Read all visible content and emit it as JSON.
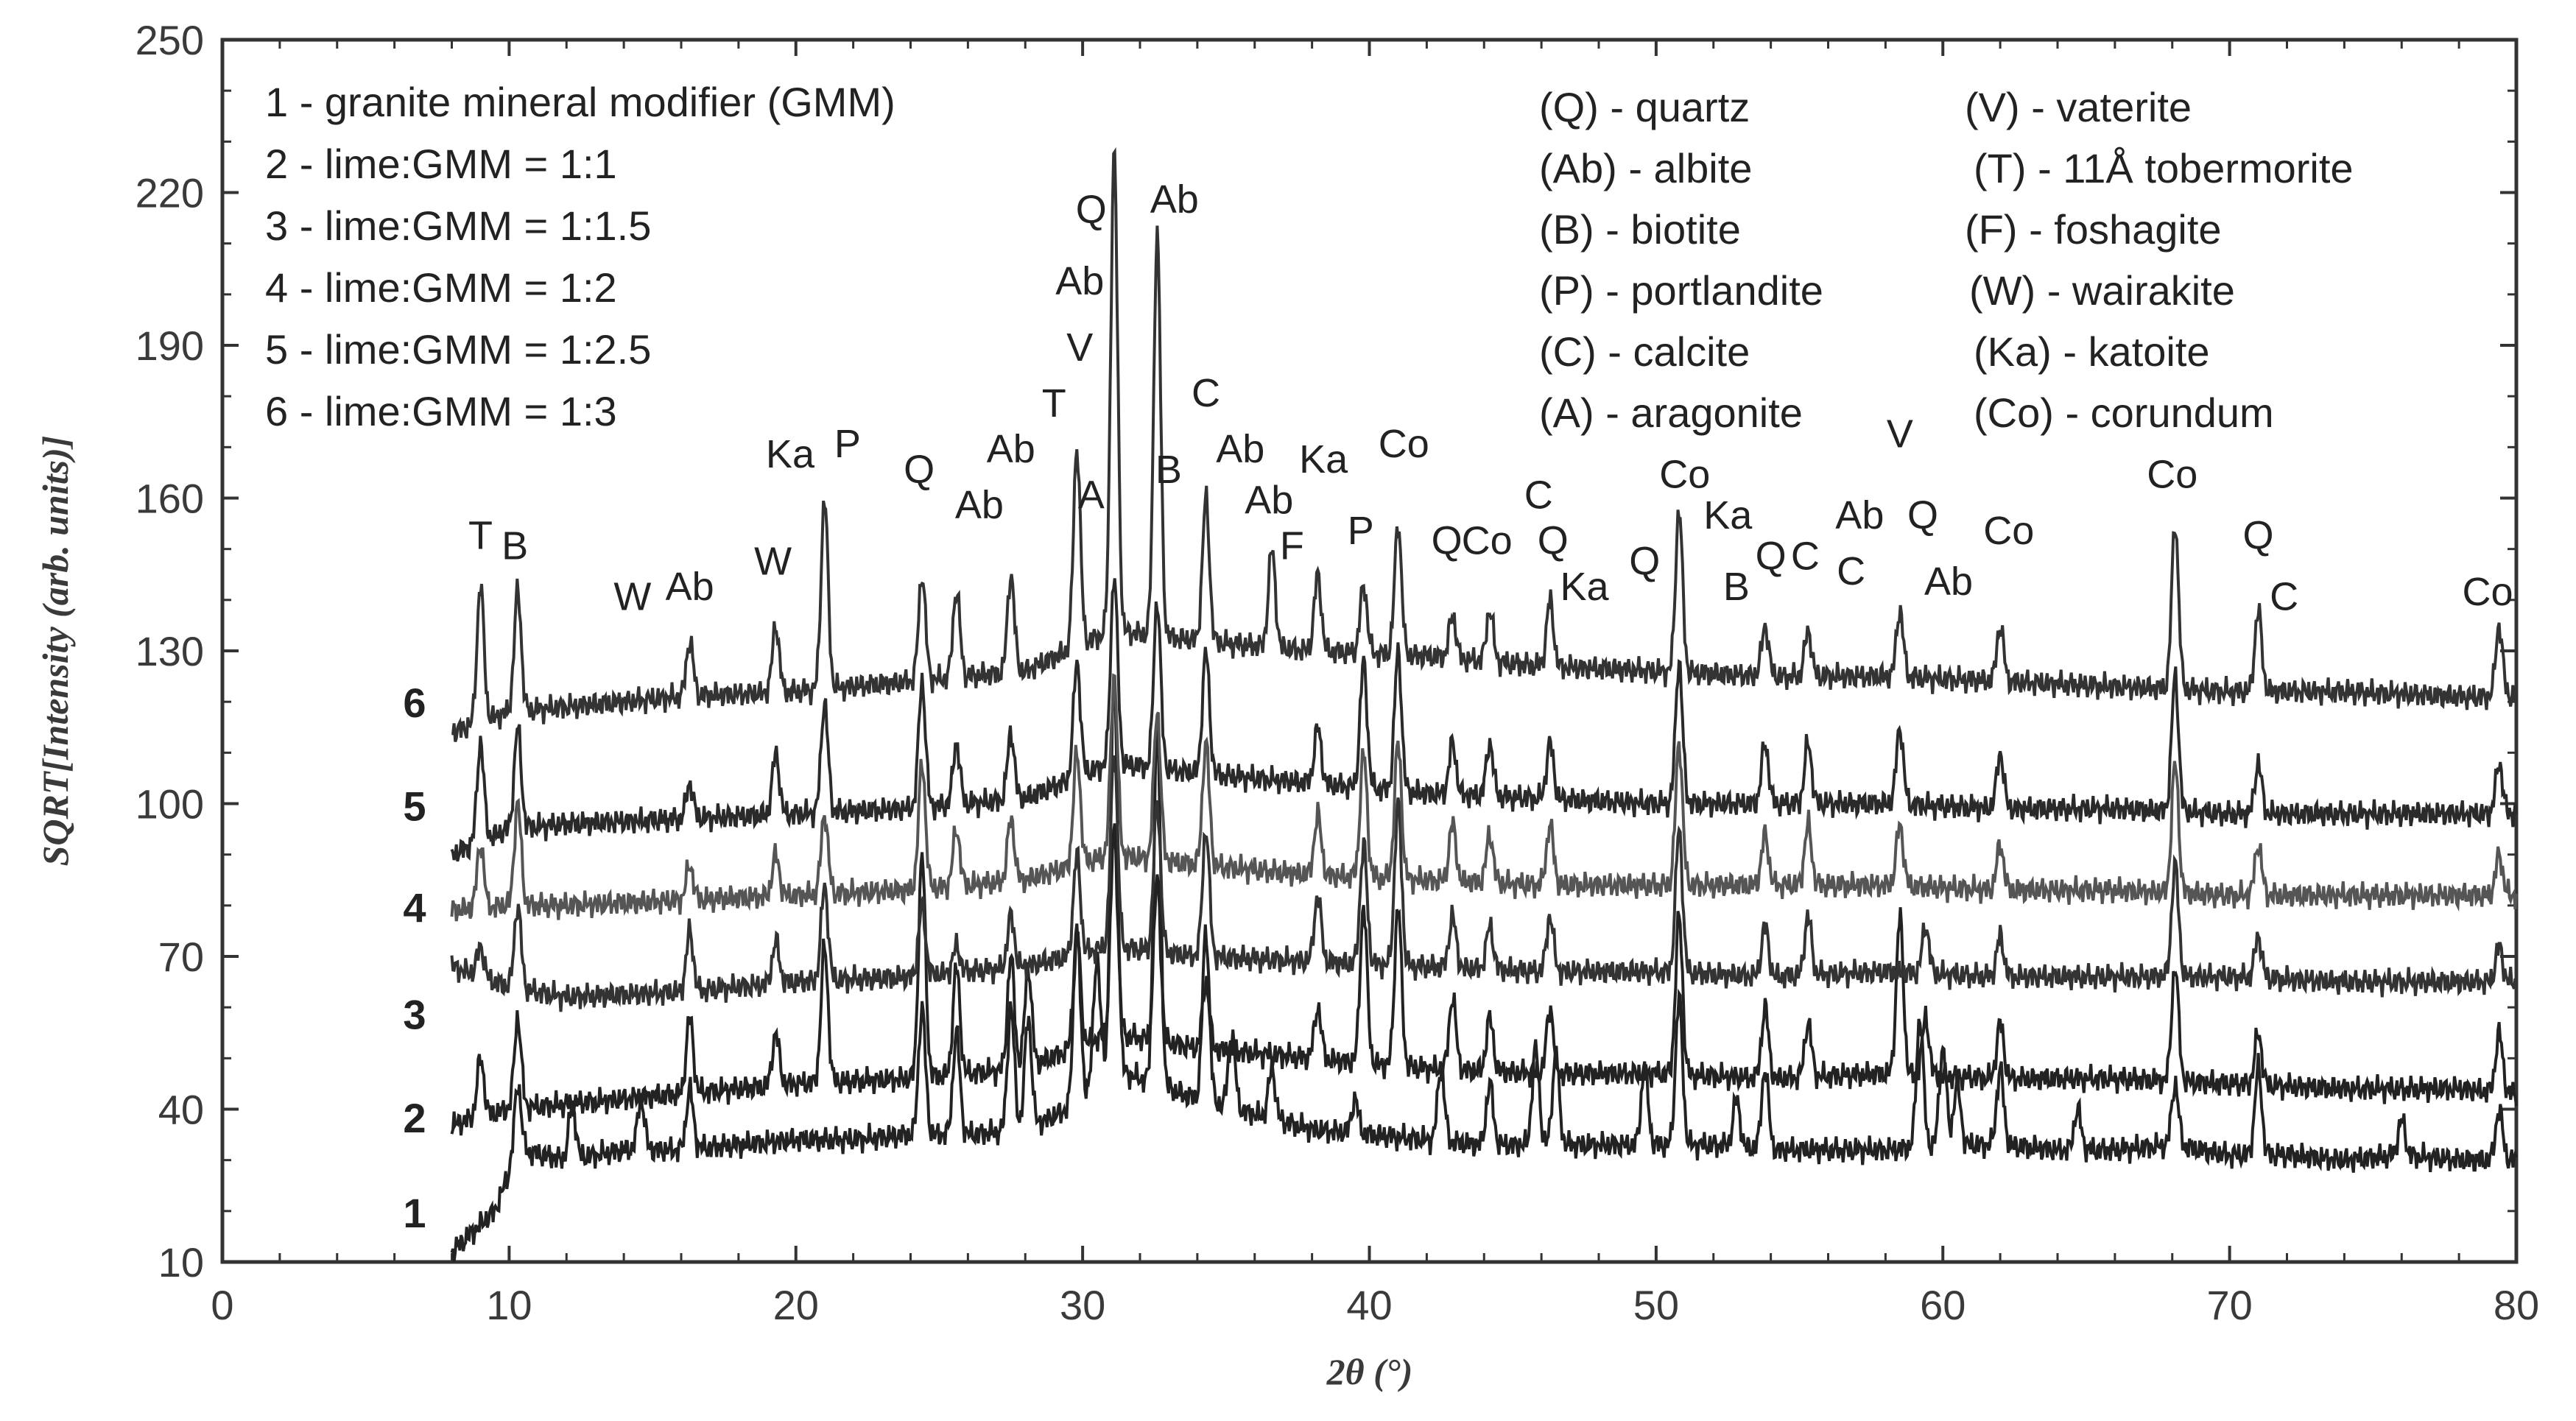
{
  "chart_data": {
    "type": "line",
    "xlabel": "2θ (°)",
    "ylabel": "SQRT[Intensity (arb. units)]",
    "xlim": [
      0,
      80
    ],
    "ylim": [
      10,
      250
    ],
    "xticks": [
      0,
      10,
      20,
      30,
      40,
      50,
      60,
      70,
      80
    ],
    "yticks": [
      10,
      40,
      70,
      100,
      130,
      160,
      190,
      220,
      250
    ],
    "legend_samples": [
      "1 - granite mineral modifier (GMM)",
      "2 - lime:GMM = 1:1",
      "3 - lime:GMM = 1:1.5",
      "4 - lime:GMM = 1:2",
      "5 - lime:GMM = 1:2.5",
      "6 - lime:GMM = 1:3"
    ],
    "legend_phases": [
      "(Q) - quartz",
      "(V) - vaterite",
      "(Ab) - albite",
      "(T) - 11Å tobermorite",
      "(B) - biotite",
      "(F) - foshagite",
      "(P) - portlandite",
      "(W) - wairakite",
      "(C) - calcite",
      "(Ka) - katoite",
      "(A) - aragonite",
      "(Co) - corundum"
    ],
    "series": [
      {
        "name": "1",
        "x": [
          8,
          9.5,
          10.3,
          12,
          14,
          16,
          18,
          20,
          22,
          24,
          26,
          28,
          29.5,
          31,
          32.5,
          34,
          36,
          38,
          40,
          42,
          44,
          46,
          48,
          50,
          52,
          54,
          56,
          58,
          60,
          62,
          64,
          66,
          68,
          70,
          72,
          74,
          76,
          78,
          80
        ],
        "y": [
          12,
          20,
          32,
          30,
          32,
          32,
          33,
          34,
          34,
          35,
          35,
          36,
          40,
          48,
          45,
          42,
          39,
          36,
          35,
          34,
          33,
          33,
          33,
          33,
          33,
          32,
          32,
          32,
          33,
          33,
          32,
          32,
          33,
          31,
          31,
          30,
          31,
          30,
          30
        ],
        "peaks": [
          [
            10.3,
            45
          ],
          [
            12.2,
            41
          ],
          [
            14.6,
            42
          ],
          [
            16.3,
            44
          ],
          [
            24.4,
            60
          ],
          [
            25.6,
            55
          ],
          [
            27.5,
            60
          ],
          [
            28.1,
            58
          ],
          [
            29.8,
            75
          ],
          [
            30.5,
            70
          ],
          [
            31.1,
            125
          ],
          [
            32.6,
            115
          ],
          [
            34.3,
            75
          ],
          [
            35.2,
            55
          ],
          [
            36.6,
            48
          ],
          [
            39.5,
            42
          ],
          [
            42.5,
            48
          ],
          [
            44.2,
            45
          ],
          [
            45.8,
            52
          ],
          [
            46.5,
            50
          ],
          [
            49.6,
            48
          ],
          [
            50.8,
            62
          ],
          [
            52.8,
            42
          ],
          [
            53.8,
            48
          ],
          [
            59.2,
            58
          ],
          [
            60.0,
            52
          ],
          [
            60.5,
            45
          ],
          [
            62.0,
            48
          ],
          [
            64.7,
            40
          ],
          [
            68.1,
            45
          ],
          [
            71.0,
            48
          ],
          [
            76.0,
            38
          ],
          [
            79.4,
            40
          ]
        ]
      },
      {
        "name": "2",
        "x": [
          8,
          10,
          12,
          16,
          20,
          24,
          28,
          31,
          34,
          38,
          42,
          46,
          50,
          54,
          58,
          62,
          66,
          70,
          74,
          78,
          80
        ],
        "y": [
          37,
          40,
          41,
          43,
          45,
          46,
          48,
          55,
          52,
          50,
          48,
          47,
          47,
          46,
          47,
          46,
          46,
          45,
          44,
          44,
          43
        ],
        "peaks": [
          [
            9.0,
            50
          ],
          [
            10.3,
            58
          ],
          [
            16.3,
            58
          ],
          [
            19.3,
            55
          ],
          [
            21.0,
            72
          ],
          [
            24.4,
            90
          ],
          [
            25.6,
            68
          ],
          [
            27.5,
            70
          ],
          [
            28.1,
            68
          ],
          [
            29.8,
            75
          ],
          [
            31.1,
            95
          ],
          [
            32.6,
            85
          ],
          [
            34.3,
            65
          ],
          [
            38.2,
            60
          ],
          [
            39.8,
            80
          ],
          [
            41.0,
            80
          ],
          [
            42.9,
            62
          ],
          [
            44.2,
            58
          ],
          [
            46.3,
            60
          ],
          [
            50.8,
            78
          ],
          [
            53.8,
            60
          ],
          [
            55.3,
            57
          ],
          [
            58.5,
            78
          ],
          [
            59.4,
            58
          ],
          [
            62.0,
            57
          ],
          [
            68.1,
            68
          ],
          [
            71.0,
            55
          ],
          [
            79.4,
            55
          ]
        ]
      },
      {
        "name": "3",
        "x": [
          8,
          10,
          12,
          16,
          20,
          24,
          28,
          31,
          34,
          38,
          42,
          46,
          50,
          54,
          58,
          62,
          66,
          70,
          74,
          78,
          80
        ],
        "y": [
          68,
          64,
          62,
          63,
          65,
          66,
          68,
          72,
          70,
          69,
          68,
          67,
          67,
          66,
          67,
          66,
          66,
          66,
          65,
          65,
          65
        ],
        "peaks": [
          [
            9.0,
            72
          ],
          [
            10.3,
            80
          ],
          [
            16.3,
            75
          ],
          [
            19.3,
            73
          ],
          [
            21.0,
            84
          ],
          [
            24.4,
            80
          ],
          [
            25.6,
            72
          ],
          [
            27.5,
            78
          ],
          [
            29.8,
            90
          ],
          [
            31.1,
            110
          ],
          [
            32.6,
            100
          ],
          [
            34.3,
            95
          ],
          [
            38.2,
            82
          ],
          [
            39.8,
            92
          ],
          [
            41.0,
            100
          ],
          [
            42.9,
            78
          ],
          [
            44.2,
            76
          ],
          [
            46.3,
            78
          ],
          [
            50.8,
            95
          ],
          [
            53.8,
            76
          ],
          [
            55.3,
            78
          ],
          [
            59.4,
            76
          ],
          [
            62.0,
            74
          ],
          [
            68.1,
            88
          ],
          [
            71.0,
            74
          ],
          [
            79.4,
            72
          ]
        ]
      },
      {
        "name": "4",
        "x": [
          8,
          10,
          12,
          16,
          20,
          24,
          28,
          31,
          34,
          38,
          42,
          46,
          50,
          54,
          58,
          62,
          66,
          70,
          74,
          78,
          80
        ],
        "y": [
          79,
          80,
          80,
          81,
          82,
          83,
          85,
          90,
          88,
          86,
          85,
          84,
          84,
          84,
          84,
          83,
          83,
          82,
          82,
          82,
          82
        ],
        "peaks": [
          [
            9.0,
            92
          ],
          [
            10.3,
            100
          ],
          [
            16.3,
            88
          ],
          [
            19.3,
            90
          ],
          [
            21.0,
            98
          ],
          [
            24.4,
            108
          ],
          [
            25.6,
            95
          ],
          [
            27.5,
            97
          ],
          [
            29.8,
            110
          ],
          [
            31.1,
            125
          ],
          [
            32.6,
            118
          ],
          [
            34.3,
            112
          ],
          [
            38.2,
            98
          ],
          [
            39.8,
            110
          ],
          [
            41.0,
            112
          ],
          [
            42.9,
            96
          ],
          [
            44.2,
            94
          ],
          [
            46.3,
            96
          ],
          [
            50.8,
            112
          ],
          [
            53.8,
            94
          ],
          [
            55.3,
            96
          ],
          [
            58.5,
            96
          ],
          [
            62.0,
            92
          ],
          [
            68.1,
            108
          ],
          [
            71.0,
            92
          ],
          [
            79.4,
            90
          ]
        ]
      },
      {
        "name": "5",
        "x": [
          8,
          10,
          12,
          16,
          20,
          24,
          28,
          31,
          34,
          38,
          42,
          46,
          50,
          54,
          58,
          62,
          66,
          70,
          74,
          78,
          80
        ],
        "y": [
          90,
          95,
          96,
          97,
          98,
          99,
          101,
          108,
          106,
          104,
          102,
          101,
          100,
          100,
          100,
          99,
          99,
          98,
          98,
          98,
          98
        ],
        "peaks": [
          [
            9.0,
            112
          ],
          [
            10.3,
            115
          ],
          [
            16.3,
            104
          ],
          [
            19.3,
            110
          ],
          [
            21.0,
            120
          ],
          [
            24.4,
            124
          ],
          [
            25.6,
            112
          ],
          [
            27.5,
            114
          ],
          [
            29.8,
            128
          ],
          [
            31.1,
            145
          ],
          [
            32.6,
            140
          ],
          [
            34.3,
            130
          ],
          [
            38.2,
            115
          ],
          [
            39.8,
            128
          ],
          [
            41.0,
            130
          ],
          [
            42.9,
            112
          ],
          [
            44.2,
            112
          ],
          [
            46.3,
            112
          ],
          [
            50.8,
            128
          ],
          [
            53.8,
            112
          ],
          [
            55.3,
            112
          ],
          [
            58.5,
            115
          ],
          [
            62.0,
            110
          ],
          [
            68.1,
            125
          ],
          [
            71.0,
            108
          ],
          [
            79.4,
            108
          ]
        ]
      },
      {
        "name": "6",
        "x": [
          8,
          10,
          12,
          16,
          20,
          24,
          28,
          31,
          34,
          38,
          42,
          46,
          50,
          54,
          58,
          62,
          66,
          70,
          74,
          78,
          80
        ],
        "y": [
          114,
          118,
          119,
          121,
          122,
          124,
          126,
          134,
          132,
          130,
          129,
          127,
          126,
          125,
          125,
          124,
          123,
          122,
          122,
          121,
          121
        ],
        "peaks": [
          [
            9.0,
            143
          ],
          [
            10.3,
            142
          ],
          [
            16.3,
            132
          ],
          [
            19.3,
            135
          ],
          [
            21.0,
            160
          ],
          [
            24.4,
            145
          ],
          [
            25.6,
            142
          ],
          [
            27.5,
            145
          ],
          [
            29.8,
            170
          ],
          [
            31.1,
            228
          ],
          [
            32.6,
            212
          ],
          [
            34.3,
            160
          ],
          [
            36.6,
            150
          ],
          [
            38.2,
            145
          ],
          [
            39.8,
            143
          ],
          [
            41.0,
            155
          ],
          [
            42.9,
            137
          ],
          [
            44.2,
            138
          ],
          [
            46.3,
            140
          ],
          [
            50.8,
            158
          ],
          [
            53.8,
            135
          ],
          [
            55.3,
            134
          ],
          [
            58.5,
            138
          ],
          [
            62.0,
            135
          ],
          [
            68.1,
            155
          ],
          [
            71.0,
            138
          ],
          [
            79.4,
            135
          ]
        ]
      }
    ],
    "peak_labels": [
      {
        "text": "T",
        "x": 9.0,
        "y": 150
      },
      {
        "text": "B",
        "x": 10.2,
        "y": 148
      },
      {
        "text": "W",
        "x": 14.3,
        "y": 138
      },
      {
        "text": "Ab",
        "x": 16.3,
        "y": 140
      },
      {
        "text": "W",
        "x": 19.2,
        "y": 145
      },
      {
        "text": "Ka",
        "x": 19.8,
        "y": 166
      },
      {
        "text": "P",
        "x": 21.8,
        "y": 168
      },
      {
        "text": "Q",
        "x": 24.3,
        "y": 163
      },
      {
        "text": "Ab",
        "x": 26.4,
        "y": 156
      },
      {
        "text": "Ab",
        "x": 27.5,
        "y": 167
      },
      {
        "text": "T",
        "x": 29.0,
        "y": 176
      },
      {
        "text": "A",
        "x": 30.3,
        "y": 158
      },
      {
        "text": "V",
        "x": 29.9,
        "y": 187
      },
      {
        "text": "Ab",
        "x": 29.9,
        "y": 200
      },
      {
        "text": "Q",
        "x": 30.3,
        "y": 214
      },
      {
        "text": "Ab",
        "x": 33.2,
        "y": 216
      },
      {
        "text": "B",
        "x": 33.0,
        "y": 163
      },
      {
        "text": "C",
        "x": 34.3,
        "y": 178
      },
      {
        "text": "Ab",
        "x": 35.5,
        "y": 167
      },
      {
        "text": "Ab",
        "x": 36.5,
        "y": 157
      },
      {
        "text": "F",
        "x": 37.3,
        "y": 148
      },
      {
        "text": "Ka",
        "x": 38.4,
        "y": 165
      },
      {
        "text": "P",
        "x": 39.7,
        "y": 151
      },
      {
        "text": "Co",
        "x": 41.2,
        "y": 168
      },
      {
        "text": "Q",
        "x": 42.7,
        "y": 149
      },
      {
        "text": "Co",
        "x": 44.1,
        "y": 149
      },
      {
        "text": "C",
        "x": 45.9,
        "y": 158
      },
      {
        "text": "Q",
        "x": 46.4,
        "y": 149
      },
      {
        "text": "Ka",
        "x": 47.5,
        "y": 140
      },
      {
        "text": "Q",
        "x": 49.6,
        "y": 145
      },
      {
        "text": "Co",
        "x": 51.0,
        "y": 162
      },
      {
        "text": "Ka",
        "x": 52.5,
        "y": 154
      },
      {
        "text": "B",
        "x": 52.8,
        "y": 140
      },
      {
        "text": "Q",
        "x": 54.0,
        "y": 146
      },
      {
        "text": "C",
        "x": 55.2,
        "y": 146
      },
      {
        "text": "Ab",
        "x": 57.1,
        "y": 154
      },
      {
        "text": "C",
        "x": 56.8,
        "y": 143
      },
      {
        "text": "V",
        "x": 58.5,
        "y": 170
      },
      {
        "text": "Q",
        "x": 59.3,
        "y": 154
      },
      {
        "text": "Ab",
        "x": 60.2,
        "y": 141
      },
      {
        "text": "Co",
        "x": 62.3,
        "y": 151
      },
      {
        "text": "Co",
        "x": 68.0,
        "y": 162
      },
      {
        "text": "Q",
        "x": 71.0,
        "y": 150
      },
      {
        "text": "C",
        "x": 71.9,
        "y": 138
      },
      {
        "text": "Co",
        "x": 79.0,
        "y": 139
      }
    ],
    "curve_labels": [
      "6",
      "5",
      "4",
      "3",
      "2",
      "1"
    ]
  }
}
